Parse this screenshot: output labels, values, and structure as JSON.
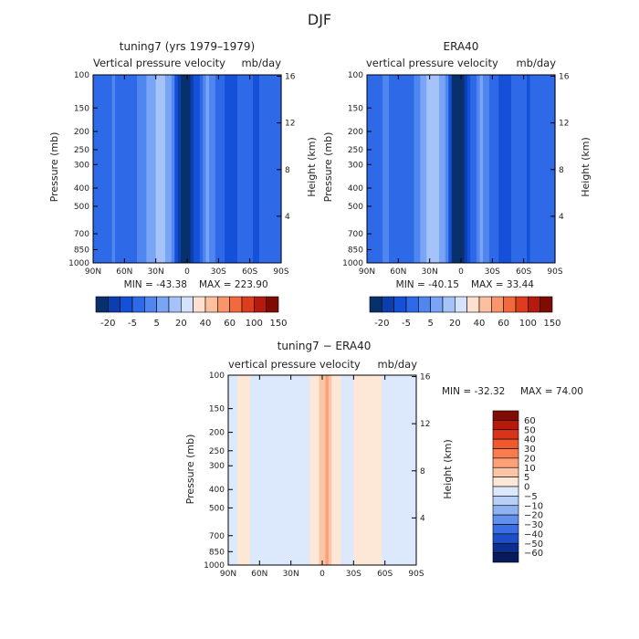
{
  "figure": {
    "title": "DJF"
  },
  "chart_data": [
    {
      "type": "heatmap",
      "title": "tuning7 (yrs 1979–1979)",
      "subtitle_left": "Vertical pressure velocity",
      "subtitle_right": "mb/day",
      "ylabel": "Pressure (mb)",
      "ylabel_right": "Height (km)",
      "x_ticks": [
        "90N",
        "60N",
        "30N",
        "0",
        "30S",
        "60S",
        "90S"
      ],
      "y_ticks": [
        1000,
        850,
        700,
        500,
        400,
        300,
        250,
        200,
        150,
        100
      ],
      "y_right_ticks": [
        4,
        8,
        12,
        16
      ],
      "min_label": "MIN = -43.38",
      "max_label": "MAX = 223.90",
      "colorbar_labels": [
        "-20",
        "-5",
        "5",
        "20",
        "40",
        "60",
        "100",
        "150"
      ],
      "colorbar_colors": [
        "#08306b",
        "#0b3fb0",
        "#1550d8",
        "#2e6ae8",
        "#4f86f0",
        "#7aa4f5",
        "#a6c3f9",
        "#d4e2fc",
        "#fde0cf",
        "#fcbfa0",
        "#f9956b",
        "#f26a3c",
        "#dd3d1c",
        "#b51a0c",
        "#800b04"
      ],
      "z_profile": [
        {
          "lat": 90,
          "v": -5
        },
        {
          "lat": 80,
          "v": -8
        },
        {
          "lat": 70,
          "v": -3
        },
        {
          "lat": 60,
          "v": -12
        },
        {
          "lat": 45,
          "v": -2
        },
        {
          "lat": 33,
          "v": 10
        },
        {
          "lat": 25,
          "v": 18
        },
        {
          "lat": 15,
          "v": 5
        },
        {
          "lat": 8,
          "v": -30
        },
        {
          "lat": 0,
          "v": -38
        },
        {
          "lat": -10,
          "v": -15
        },
        {
          "lat": -20,
          "v": 8
        },
        {
          "lat": -30,
          "v": -10
        },
        {
          "lat": -45,
          "v": -18
        },
        {
          "lat": -55,
          "v": -5
        },
        {
          "lat": -65,
          "v": -15
        },
        {
          "lat": -80,
          "v": -10
        },
        {
          "lat": -90,
          "v": -5
        }
      ]
    },
    {
      "type": "heatmap",
      "title": "ERA40",
      "subtitle_left": "vertical pressure velocity",
      "subtitle_right": "mb/day",
      "ylabel": "Pressure (mb)",
      "ylabel_right": "Height (km)",
      "x_ticks": [
        "90N",
        "60N",
        "30N",
        "0",
        "30S",
        "60S",
        "90S"
      ],
      "y_ticks": [
        1000,
        850,
        700,
        500,
        400,
        300,
        250,
        200,
        150,
        100
      ],
      "y_right_ticks": [
        4,
        8,
        12,
        16
      ],
      "min_label": "MIN = -40.15",
      "max_label": "MAX =  33.44",
      "colorbar_labels": [
        "-20",
        "-5",
        "5",
        "20",
        "40",
        "60",
        "100",
        "150"
      ],
      "colorbar_colors": [
        "#08306b",
        "#0b3fb0",
        "#1550d8",
        "#2e6ae8",
        "#4f86f0",
        "#7aa4f5",
        "#a6c3f9",
        "#d4e2fc",
        "#fde0cf",
        "#fcbfa0",
        "#f9956b",
        "#f26a3c",
        "#dd3d1c",
        "#b51a0c",
        "#800b04"
      ],
      "z_profile": [
        {
          "lat": 90,
          "v": -5
        },
        {
          "lat": 80,
          "v": -6
        },
        {
          "lat": 70,
          "v": -3
        },
        {
          "lat": 60,
          "v": -14
        },
        {
          "lat": 45,
          "v": -4
        },
        {
          "lat": 33,
          "v": 12
        },
        {
          "lat": 25,
          "v": 20
        },
        {
          "lat": 15,
          "v": 4
        },
        {
          "lat": 8,
          "v": -32
        },
        {
          "lat": 0,
          "v": -36
        },
        {
          "lat": -10,
          "v": -14
        },
        {
          "lat": -20,
          "v": 6
        },
        {
          "lat": -30,
          "v": -12
        },
        {
          "lat": -45,
          "v": -16
        },
        {
          "lat": -55,
          "v": -6
        },
        {
          "lat": -65,
          "v": -14
        },
        {
          "lat": -80,
          "v": -8
        },
        {
          "lat": -90,
          "v": -4
        }
      ]
    },
    {
      "type": "heatmap",
      "title": "tuning7 − ERA40",
      "subtitle_left": "vertical pressure velocity",
      "subtitle_right": "mb/day",
      "ylabel": "Pressure (mb)",
      "ylabel_right": "Height (km)",
      "x_ticks": [
        "90N",
        "60N",
        "30N",
        "0",
        "30S",
        "60S",
        "90S"
      ],
      "y_ticks": [
        1000,
        850,
        700,
        500,
        400,
        300,
        250,
        200,
        150,
        100
      ],
      "y_right_ticks": [
        4,
        8,
        12,
        16
      ],
      "min_label": "MIN = -32.32",
      "max_label": "MAX =   74.00",
      "colorbar_labels": [
        "60",
        "50",
        "40",
        "30",
        "20",
        "10",
        "5",
        "0",
        "−5",
        "−10",
        "−20",
        "−30",
        "−40",
        "−50",
        "−60"
      ],
      "colorbar_colors": [
        "#800b04",
        "#b51a0c",
        "#d8341a",
        "#f0582e",
        "#f97c4f",
        "#fba077",
        "#fcc6a6",
        "#fde8d8",
        "#dce8fb",
        "#b8cff7",
        "#8fb2f2",
        "#6390ec",
        "#3a6ee3",
        "#1d4fc9",
        "#0c2f8f",
        "#061a5c"
      ],
      "z_profile": [
        {
          "lat": 90,
          "v": -2
        },
        {
          "lat": 75,
          "v": 1
        },
        {
          "lat": 60,
          "v": -2
        },
        {
          "lat": 45,
          "v": -1
        },
        {
          "lat": 30,
          "v": -3
        },
        {
          "lat": 15,
          "v": -2
        },
        {
          "lat": 8,
          "v": 3
        },
        {
          "lat": 0,
          "v": 12
        },
        {
          "lat": -5,
          "v": 18
        },
        {
          "lat": -12,
          "v": 4
        },
        {
          "lat": -22,
          "v": -2
        },
        {
          "lat": -35,
          "v": 2
        },
        {
          "lat": -45,
          "v": 3
        },
        {
          "lat": -60,
          "v": -1
        },
        {
          "lat": -75,
          "v": -3
        },
        {
          "lat": -90,
          "v": -2
        }
      ]
    }
  ]
}
